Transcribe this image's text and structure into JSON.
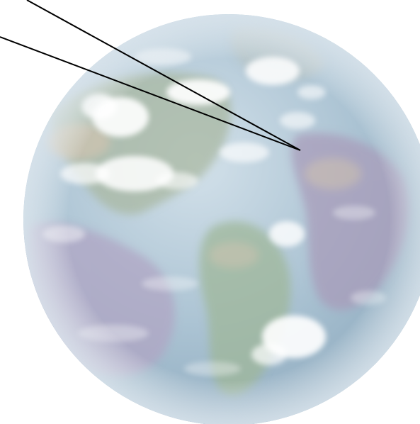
{
  "scene": {
    "subject": "earth-globe",
    "colors": {
      "background": "#ffffff",
      "ocean_light": "#c4d6e2",
      "ocean_mid": "#9fb8c9",
      "ocean_deep": "#7f9db4",
      "land_tint": "#a79bb8",
      "vegetation_tint": "#9fb79a",
      "desert_tint": "#d9c1a2",
      "cloud": "#ffffff",
      "pointer_line": "#000000"
    },
    "pointer_lines": 2
  }
}
